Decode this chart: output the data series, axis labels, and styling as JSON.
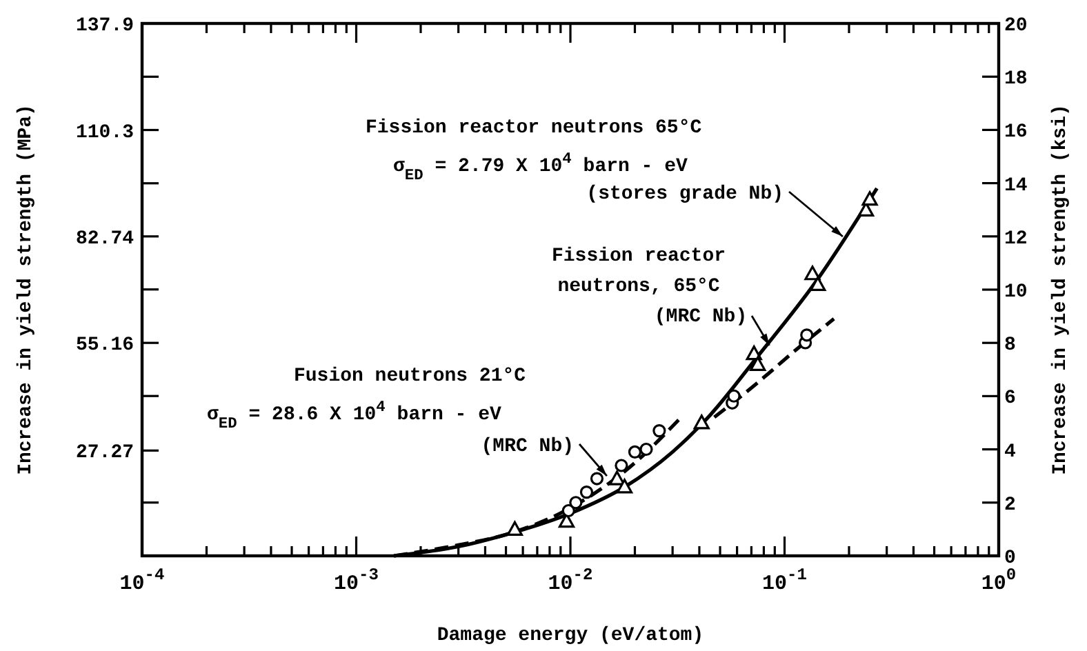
{
  "chart_data": {
    "type": "scatter",
    "xlabel": "Damage energy (eV/atom)",
    "ylabel": "Increase in yield strength (MPa)",
    "y2label": "Increase in yield strength (ksi)",
    "log": "x",
    "grid": false,
    "xlim": [
      0.0001,
      1
    ],
    "xticks": [
      {
        "value": 0.0001,
        "label": "10$^{-4}$"
      },
      {
        "value": 0.0002,
        "label": null
      },
      {
        "value": 0.0003,
        "label": null
      },
      {
        "value": 0.0004,
        "label": null
      },
      {
        "value": 0.0005,
        "label": null
      },
      {
        "value": 0.0006,
        "label": null
      },
      {
        "value": 0.0007,
        "label": null
      },
      {
        "value": 0.0008,
        "label": null
      },
      {
        "value": 0.0009,
        "label": null
      },
      {
        "value": 0.001,
        "label": "10$^{-3}$"
      },
      {
        "value": 0.002,
        "label": null
      },
      {
        "value": 0.003,
        "label": null
      },
      {
        "value": 0.004,
        "label": null
      },
      {
        "value": 0.005,
        "label": null
      },
      {
        "value": 0.006,
        "label": null
      },
      {
        "value": 0.007,
        "label": null
      },
      {
        "value": 0.008,
        "label": null
      },
      {
        "value": 0.009,
        "label": null
      },
      {
        "value": 0.01,
        "label": "10$^{-2}$"
      },
      {
        "value": 0.02,
        "label": null
      },
      {
        "value": 0.03,
        "label": null
      },
      {
        "value": 0.04,
        "label": null
      },
      {
        "value": 0.05,
        "label": null
      },
      {
        "value": 0.06,
        "label": null
      },
      {
        "value": 0.07,
        "label": null
      },
      {
        "value": 0.08,
        "label": null
      },
      {
        "value": 0.09,
        "label": null
      },
      {
        "value": 0.1,
        "label": "10$^{-1}$"
      },
      {
        "value": 0.2,
        "label": null
      },
      {
        "value": 0.3,
        "label": null
      },
      {
        "value": 0.4,
        "label": null
      },
      {
        "value": 0.5,
        "label": null
      },
      {
        "value": 0.6,
        "label": null
      },
      {
        "value": 0.7,
        "label": null
      },
      {
        "value": 0.8,
        "label": null
      },
      {
        "value": 0.9,
        "label": null
      },
      {
        "value": 1,
        "label": "10$^{0}$"
      }
    ],
    "ylim": [
      0,
      137.9
    ],
    "yticks": [
      {
        "value": 13.8,
        "label": null
      },
      27.27,
      {
        "value": 41.4,
        "label": null
      },
      55.16,
      {
        "value": 69,
        "label": null
      },
      82.74,
      {
        "value": 96.5,
        "label": null
      },
      110.3,
      {
        "value": 124.1,
        "label": null
      },
      137.9
    ],
    "y2lim": [
      0,
      20
    ],
    "y2ticks": [
      0,
      2,
      4,
      6,
      8,
      10,
      12,
      14,
      16,
      18,
      20
    ],
    "series": [
      {
        "marker": "triangle",
        "color": "#000000",
        "x": [
          0.0055,
          0.0096,
          0.0165,
          0.0179,
          0.041,
          0.072,
          0.075,
          0.135,
          0.143,
          0.24,
          0.25
        ],
        "values": [
          6.9,
          9.0,
          20.0,
          17.9,
          34.5,
          52.4,
          49.6,
          73.1,
          70.3,
          89.6,
          92.4
        ]
      },
      {
        "type": "line",
        "line_style": "solid",
        "marker": "none",
        "color": "#000000",
        "x": [
          0.0015,
          0.003,
          0.005,
          0.01,
          0.018,
          0.03,
          0.045,
          0.075,
          0.14,
          0.27
        ],
        "values": [
          0,
          2.4,
          5.5,
          11.0,
          17.9,
          26.9,
          36.5,
          51.7,
          71.0,
          95.2
        ]
      },
      {
        "marker": "circle",
        "color": "#000000",
        "x": [
          0.057,
          0.058,
          0.125,
          0.127
        ],
        "values": [
          39.6,
          41.4,
          55.2,
          57.2
        ]
      },
      {
        "type": "line",
        "line_style": "dashed",
        "marker": "none",
        "color": "#000000",
        "x": [
          0.047,
          0.06,
          0.08,
          0.11,
          0.17
        ],
        "values": [
          35.9,
          40.5,
          46.2,
          52.8,
          61.4
        ]
      },
      {
        "marker": "circle",
        "color": "#000000",
        "x": [
          0.0098,
          0.0106,
          0.0119,
          0.0133,
          0.0173,
          0.02,
          0.0226,
          0.026
        ],
        "values": [
          11.7,
          13.8,
          16.5,
          20.0,
          23.4,
          26.9,
          27.6,
          32.4
        ]
      },
      {
        "type": "line",
        "line_style": "dashed",
        "marker": "none",
        "color": "#000000",
        "x": [
          0.0015,
          0.003,
          0.005,
          0.01,
          0.02,
          0.032
        ],
        "values": [
          0,
          2.8,
          5.5,
          12.4,
          24.1,
          35.2
        ]
      }
    ],
    "annotations": [
      "Fission reactor neutrons 65°C",
      "σ$_{ED}$ = 2.79 X 10$^{4}$ barn - eV",
      {
        "text": "(stores grade Nb)",
        "x": 0.187,
        "y": 82.7
      },
      "Fission reactor",
      "neutrons, 65°C",
      {
        "text": "(MRC Nb)",
        "x": 0.085,
        "y": 54.5
      },
      "Fusion neutrons 21°C",
      "σ$_{ED}$ = 28.6 X 10$^{4}$ barn - eV",
      {
        "text": "(MRC Nb)",
        "x": 0.0148,
        "y": 20.7
      }
    ]
  }
}
